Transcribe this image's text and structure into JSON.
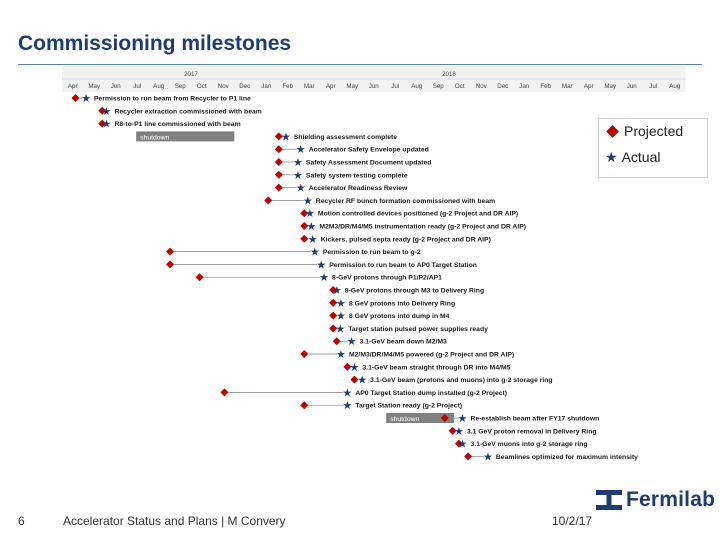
{
  "title": "Commissioning milestones",
  "legend": {
    "projected": "Projected",
    "actual": "Actual"
  },
  "footer": {
    "page": "6",
    "presentation": "Accelerator Status and Plans | M Convery",
    "date": "10/2/17"
  },
  "logo": "Fermilab",
  "colors": {
    "projected": "#c00000",
    "actual": "#1f3b73",
    "title": "#1f3b73",
    "timeline_bg": "#f2f2f2"
  },
  "timeline": {
    "years": [
      "2017",
      "2018"
    ],
    "months": [
      "Apr",
      "May",
      "Jun",
      "Jul",
      "Aug",
      "Sep",
      "Oct",
      "Nov",
      "Dec",
      "Jan",
      "Feb",
      "Mar",
      "Apr",
      "May",
      "Jun",
      "Jul",
      "Aug",
      "Sep",
      "Oct",
      "Nov",
      "Dec",
      "Jan",
      "Feb",
      "Mar",
      "Apr",
      "May",
      "Jun",
      "Jul",
      "Aug"
    ]
  },
  "milestones": [
    {
      "label": "Permission to run beam from Recycler to P1 line",
      "projected": "2016-04-20",
      "actual": "2016-05-05"
    },
    {
      "label": "Recycler extraction commissioned with beam",
      "projected": "2016-05-28",
      "actual": "2016-06-03"
    },
    {
      "label": "R8-to-P1 line commissioned with beam",
      "projected": "2016-05-28",
      "actual": "2016-06-03"
    },
    {
      "label": "Shielding assessment complete",
      "projected": "2017-02-02",
      "actual": "2017-02-12"
    },
    {
      "label": "Accelerator Safety Envelope updated",
      "projected": "2017-02-02",
      "actual": "2017-03-05"
    },
    {
      "label": "Safety Assessment Document updated",
      "projected": "2017-02-02",
      "actual": "2017-03-01"
    },
    {
      "label": "Safety system testing complete",
      "projected": "2017-02-02",
      "actual": "2017-03-01"
    },
    {
      "label": "Accelerator Readiness Review",
      "projected": "2017-02-02",
      "actual": "2017-03-05"
    },
    {
      "label": "Recycler RF bunch formation commissioned with beam",
      "projected": "2017-01-18",
      "actual": "2017-03-15"
    },
    {
      "label": "Motion controlled devices positioned (g-2 Project and DR AIP)",
      "projected": "2017-03-10",
      "actual": "2017-03-18"
    },
    {
      "label": "M2M3/DR/M4/M5 instrumentation ready (g-2 Project and DR AIP)",
      "projected": "2017-03-10",
      "actual": "2017-03-20"
    },
    {
      "label": "Kickers, pulsed septa ready (g-2 Project and DR AIP)",
      "projected": "2017-03-10",
      "actual": "2017-03-22"
    },
    {
      "label": "Permission to run beam to g-2",
      "projected": "2016-09-01",
      "actual": "2017-03-25"
    },
    {
      "label": "Permission to run beam to AP0 Target Station",
      "projected": "2016-09-01",
      "actual": "2017-04-03"
    },
    {
      "label": "8-GeV protons through P1/P2/AP1",
      "projected": "2016-10-13",
      "actual": "2017-04-07"
    },
    {
      "label": "8-GeV protons through M3 to Delivery Ring",
      "projected": "2017-04-20",
      "actual": "2017-04-25"
    },
    {
      "label": "8 GeV protons into Delivery Ring",
      "projected": "2017-04-20",
      "actual": "2017-05-01"
    },
    {
      "label": "8 GeV protons into dump in M4",
      "projected": "2017-04-20",
      "actual": "2017-05-01"
    },
    {
      "label": "Target station pulsed power supplies ready",
      "projected": "2017-04-20",
      "actual": "2017-04-30"
    },
    {
      "label": "3.1-GeV beam down M2/M3",
      "projected": "2017-04-25",
      "actual": "2017-05-16"
    },
    {
      "label": "M2/M3/DR/M4/M5 powered (g-2 Project and DR AIP)",
      "projected": "2017-03-10",
      "actual": "2017-05-01"
    },
    {
      "label": "3.1-GeV beam straight through DR into M4/M5",
      "projected": "2017-05-10",
      "actual": "2017-05-20"
    },
    {
      "label": "3.1-GeV beam (protons and muons) into g-2 storage ring",
      "projected": "2017-05-20",
      "actual": "2017-05-31"
    },
    {
      "label": "AP0 Target Station dump installed (g-2 Project)",
      "projected": "2016-11-17",
      "actual": "2017-05-10"
    },
    {
      "label": "Target Station ready (g-2 Project)",
      "projected": "2017-03-10",
      "actual": "2017-05-10"
    },
    {
      "label": "Re-establish beam after FY17 shutdown",
      "projected": "2017-09-25",
      "actual": "2017-10-20"
    },
    {
      "label": "3.1 GeV proton removal in Delivery Ring",
      "projected": "2017-10-06",
      "actual": "2017-10-15"
    },
    {
      "label": "3.1-GeV muons into g-2 storage ring",
      "projected": "2017-10-15",
      "actual": "2017-10-20"
    },
    {
      "label": "Beamlines optimized for maximum intensity",
      "projected": "2017-10-28",
      "actual": "2017-11-25"
    }
  ],
  "shutdowns": [
    {
      "label": "shutdown",
      "start": "2016-07-15",
      "end": "2016-12-01",
      "row": 3
    },
    {
      "label": "shutdown",
      "start": "2017-07-04",
      "end": "2017-10-08",
      "row": 25
    }
  ]
}
